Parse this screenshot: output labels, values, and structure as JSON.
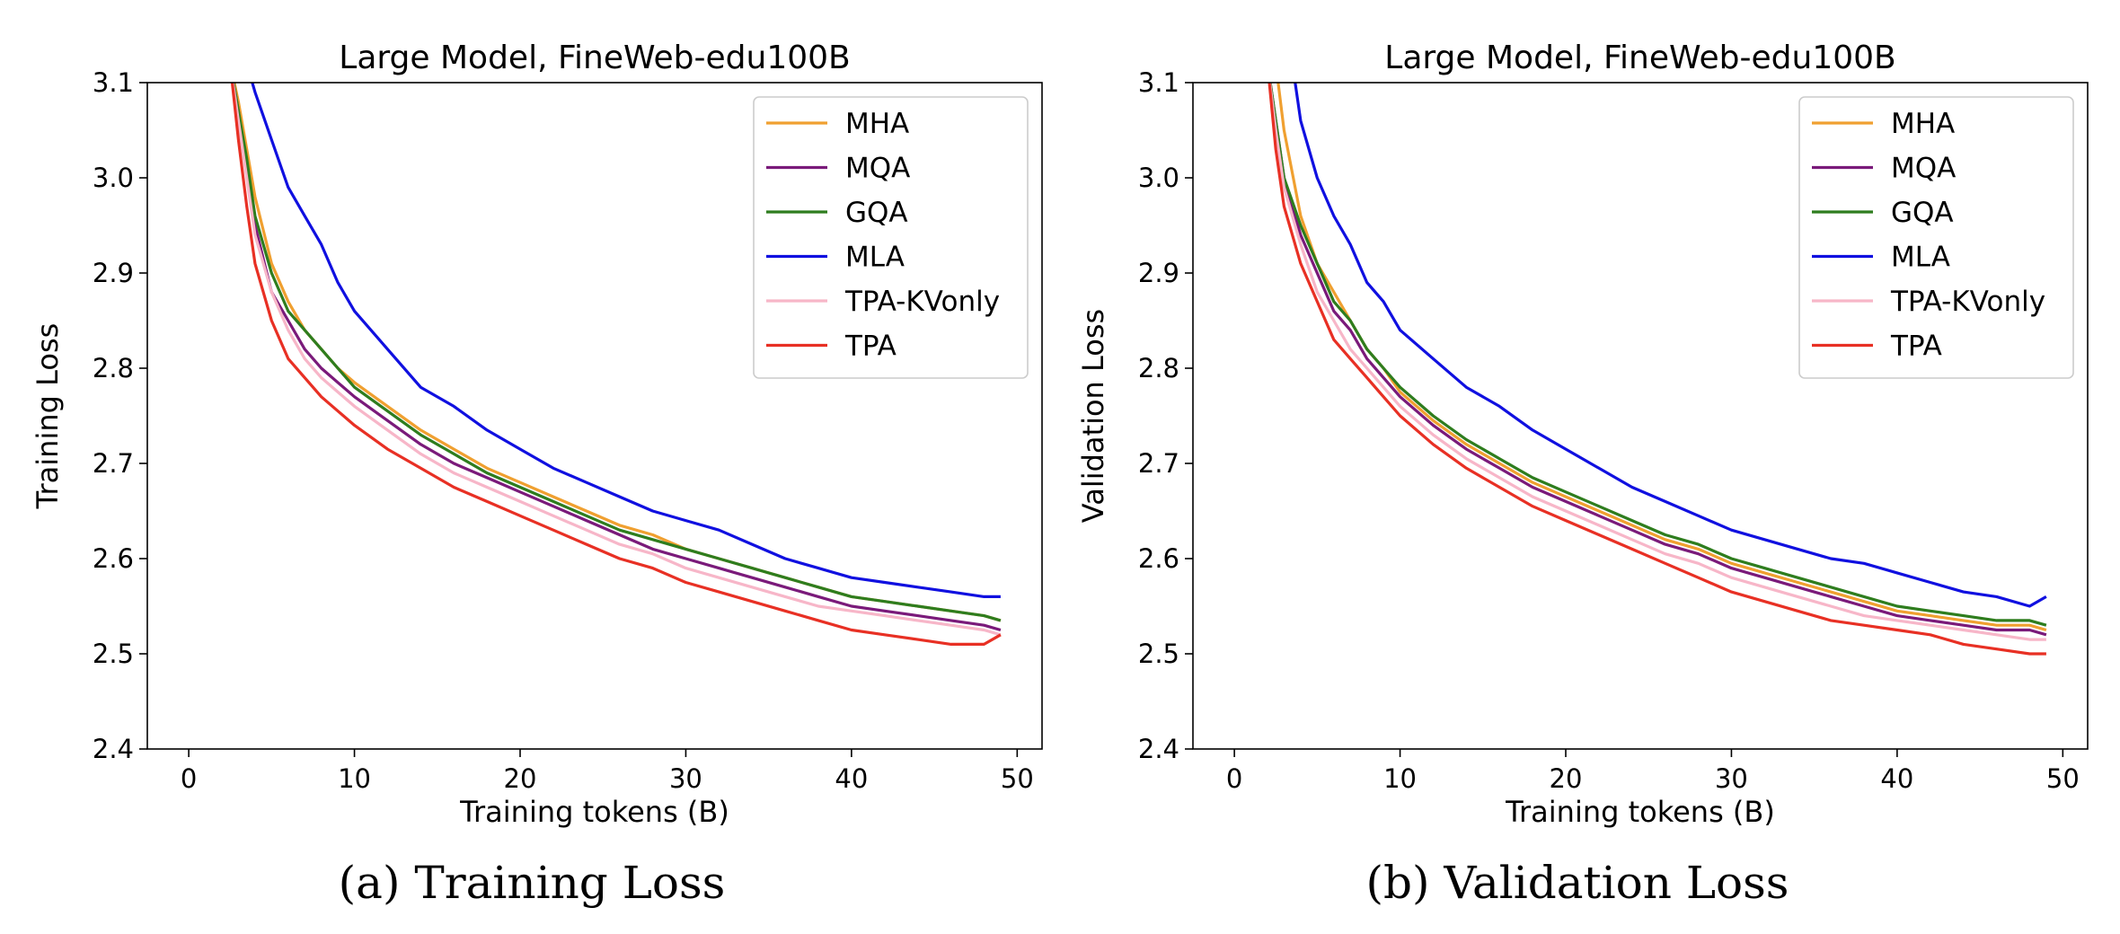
{
  "figure": {
    "captions": [
      "(a) Training Loss",
      "(b) Validation Loss"
    ]
  },
  "chart_data": [
    {
      "type": "line",
      "title": "Large Model, FineWeb-edu100B",
      "xlabel": "Training tokens (B)",
      "ylabel": "Training Loss",
      "xlim": [
        -2.5,
        51.5
      ],
      "ylim": [
        2.4,
        3.1
      ],
      "xticks": [
        0,
        10,
        20,
        30,
        40,
        50
      ],
      "yticks": [
        2.4,
        2.5,
        2.6,
        2.7,
        2.8,
        2.9,
        3.0,
        3.1
      ],
      "xtick_labels": [
        "0",
        "10",
        "20",
        "30",
        "40",
        "50"
      ],
      "ytick_labels": [
        "2.4",
        "2.5",
        "2.6",
        "2.7",
        "2.8",
        "2.9",
        "3.0",
        "3.1"
      ],
      "grid": false,
      "legend_position": "upper-right",
      "series": [
        {
          "name": "MHA",
          "color": "#f0a030",
          "x": [
            2.5,
            3,
            3.5,
            4,
            5,
            6,
            7,
            8,
            9,
            10,
            12,
            14,
            16,
            18,
            20,
            22,
            24,
            26,
            28,
            30,
            32,
            34,
            36,
            38,
            40,
            42,
            44,
            46,
            48,
            49
          ],
          "y": [
            3.12,
            3.08,
            3.03,
            2.98,
            2.91,
            2.87,
            2.84,
            2.82,
            2.8,
            2.785,
            2.76,
            2.735,
            2.715,
            2.695,
            2.68,
            2.665,
            2.65,
            2.635,
            2.625,
            2.61,
            2.6,
            2.59,
            2.58,
            2.57,
            2.56,
            2.555,
            2.55,
            2.545,
            2.54,
            2.535
          ]
        },
        {
          "name": "MQA",
          "color": "#7a1a7a",
          "x": [
            2.5,
            3,
            3.5,
            4,
            5,
            6,
            7,
            8,
            9,
            10,
            12,
            14,
            16,
            18,
            20,
            22,
            24,
            26,
            28,
            30,
            32,
            34,
            36,
            38,
            40,
            42,
            44,
            46,
            48,
            49
          ],
          "y": [
            3.12,
            3.07,
            3.01,
            2.95,
            2.88,
            2.85,
            2.82,
            2.8,
            2.785,
            2.77,
            2.745,
            2.72,
            2.7,
            2.685,
            2.67,
            2.655,
            2.64,
            2.625,
            2.61,
            2.6,
            2.59,
            2.58,
            2.57,
            2.56,
            2.55,
            2.545,
            2.54,
            2.535,
            2.53,
            2.525
          ]
        },
        {
          "name": "GQA",
          "color": "#2e7d1e",
          "x": [
            2.5,
            3,
            3.5,
            4,
            5,
            6,
            7,
            8,
            9,
            10,
            12,
            14,
            16,
            18,
            20,
            22,
            24,
            26,
            28,
            30,
            32,
            34,
            36,
            38,
            40,
            42,
            44,
            46,
            48,
            49
          ],
          "y": [
            3.12,
            3.07,
            3.02,
            2.96,
            2.9,
            2.86,
            2.84,
            2.82,
            2.8,
            2.78,
            2.755,
            2.73,
            2.71,
            2.69,
            2.675,
            2.66,
            2.645,
            2.63,
            2.62,
            2.61,
            2.6,
            2.59,
            2.58,
            2.57,
            2.56,
            2.555,
            2.55,
            2.545,
            2.54,
            2.535
          ]
        },
        {
          "name": "MLA",
          "color": "#1010e0",
          "x": [
            3.5,
            4,
            5,
            6,
            7,
            8,
            9,
            10,
            12,
            14,
            16,
            18,
            20,
            22,
            24,
            26,
            28,
            30,
            32,
            34,
            36,
            38,
            40,
            42,
            44,
            46,
            48,
            49
          ],
          "y": [
            3.12,
            3.09,
            3.04,
            2.99,
            2.96,
            2.93,
            2.89,
            2.86,
            2.82,
            2.78,
            2.76,
            2.735,
            2.715,
            2.695,
            2.68,
            2.665,
            2.65,
            2.64,
            2.63,
            2.615,
            2.6,
            2.59,
            2.58,
            2.575,
            2.57,
            2.565,
            2.56,
            2.56
          ]
        },
        {
          "name": "TPA-KVonly",
          "color": "#f7b6c8",
          "x": [
            2.5,
            3,
            3.5,
            4,
            5,
            6,
            7,
            8,
            9,
            10,
            12,
            14,
            16,
            18,
            20,
            22,
            24,
            26,
            28,
            30,
            32,
            34,
            36,
            38,
            40,
            42,
            44,
            46,
            48,
            49
          ],
          "y": [
            3.12,
            3.06,
            3.0,
            2.94,
            2.88,
            2.84,
            2.81,
            2.79,
            2.775,
            2.76,
            2.735,
            2.71,
            2.69,
            2.675,
            2.66,
            2.645,
            2.63,
            2.615,
            2.605,
            2.59,
            2.58,
            2.57,
            2.56,
            2.55,
            2.545,
            2.54,
            2.535,
            2.53,
            2.525,
            2.52
          ]
        },
        {
          "name": "TPA",
          "color": "#e83024",
          "x": [
            2.5,
            3,
            3.5,
            4,
            5,
            6,
            7,
            8,
            9,
            10,
            12,
            14,
            16,
            18,
            20,
            22,
            24,
            26,
            28,
            30,
            32,
            34,
            36,
            38,
            40,
            42,
            44,
            46,
            48,
            49
          ],
          "y": [
            3.12,
            3.04,
            2.97,
            2.91,
            2.85,
            2.81,
            2.79,
            2.77,
            2.755,
            2.74,
            2.715,
            2.695,
            2.675,
            2.66,
            2.645,
            2.63,
            2.615,
            2.6,
            2.59,
            2.575,
            2.565,
            2.555,
            2.545,
            2.535,
            2.525,
            2.52,
            2.515,
            2.51,
            2.51,
            2.52
          ]
        }
      ]
    },
    {
      "type": "line",
      "title": "Large Model, FineWeb-edu100B",
      "xlabel": "Training tokens (B)",
      "ylabel": "Validation Loss",
      "xlim": [
        -2.5,
        51.5
      ],
      "ylim": [
        2.4,
        3.1
      ],
      "xticks": [
        0,
        10,
        20,
        30,
        40,
        50
      ],
      "yticks": [
        2.4,
        2.5,
        2.6,
        2.7,
        2.8,
        2.9,
        3.0,
        3.1
      ],
      "xtick_labels": [
        "0",
        "10",
        "20",
        "30",
        "40",
        "50"
      ],
      "ytick_labels": [
        "2.4",
        "2.5",
        "2.6",
        "2.7",
        "2.8",
        "2.9",
        "3.0",
        "3.1"
      ],
      "grid": false,
      "legend_position": "upper-right",
      "series": [
        {
          "name": "MHA",
          "color": "#f0a030",
          "x": [
            2.5,
            3,
            4,
            5,
            6,
            7,
            8,
            9,
            10,
            12,
            14,
            16,
            18,
            20,
            22,
            24,
            26,
            28,
            30,
            32,
            34,
            36,
            38,
            40,
            42,
            44,
            46,
            48,
            49
          ],
          "y": [
            3.12,
            3.05,
            2.96,
            2.91,
            2.88,
            2.85,
            2.82,
            2.8,
            2.775,
            2.745,
            2.72,
            2.7,
            2.68,
            2.665,
            2.65,
            2.635,
            2.62,
            2.61,
            2.595,
            2.585,
            2.575,
            2.565,
            2.555,
            2.545,
            2.54,
            2.535,
            2.53,
            2.53,
            2.525
          ]
        },
        {
          "name": "MQA",
          "color": "#7a1a7a",
          "x": [
            2,
            2.5,
            3,
            4,
            5,
            6,
            7,
            8,
            9,
            10,
            12,
            14,
            16,
            18,
            20,
            22,
            24,
            26,
            28,
            30,
            32,
            34,
            36,
            38,
            40,
            42,
            44,
            46,
            48,
            49
          ],
          "y": [
            3.12,
            3.06,
            3.0,
            2.94,
            2.9,
            2.86,
            2.84,
            2.81,
            2.79,
            2.77,
            2.74,
            2.715,
            2.695,
            2.675,
            2.66,
            2.645,
            2.63,
            2.615,
            2.605,
            2.59,
            2.58,
            2.57,
            2.56,
            2.55,
            2.54,
            2.535,
            2.53,
            2.525,
            2.525,
            2.52
          ]
        },
        {
          "name": "GQA",
          "color": "#2e7d1e",
          "x": [
            2,
            2.5,
            3,
            4,
            5,
            6,
            7,
            8,
            9,
            10,
            12,
            14,
            16,
            18,
            20,
            22,
            24,
            26,
            28,
            30,
            32,
            34,
            36,
            38,
            40,
            42,
            44,
            46,
            48,
            49
          ],
          "y": [
            3.12,
            3.06,
            3.0,
            2.95,
            2.91,
            2.87,
            2.85,
            2.82,
            2.8,
            2.78,
            2.75,
            2.725,
            2.705,
            2.685,
            2.67,
            2.655,
            2.64,
            2.625,
            2.615,
            2.6,
            2.59,
            2.58,
            2.57,
            2.56,
            2.55,
            2.545,
            2.54,
            2.535,
            2.535,
            2.53
          ]
        },
        {
          "name": "MLA",
          "color": "#1010e0",
          "x": [
            3.5,
            4,
            5,
            6,
            7,
            8,
            9,
            10,
            12,
            14,
            16,
            18,
            20,
            22,
            24,
            26,
            28,
            30,
            32,
            34,
            36,
            38,
            40,
            42,
            44,
            46,
            48,
            49
          ],
          "y": [
            3.12,
            3.06,
            3.0,
            2.96,
            2.93,
            2.89,
            2.87,
            2.84,
            2.81,
            2.78,
            2.76,
            2.735,
            2.715,
            2.695,
            2.675,
            2.66,
            2.645,
            2.63,
            2.62,
            2.61,
            2.6,
            2.595,
            2.585,
            2.575,
            2.565,
            2.56,
            2.55,
            2.56
          ]
        },
        {
          "name": "TPA-KVonly",
          "color": "#f7b6c8",
          "x": [
            2,
            2.5,
            3,
            4,
            5,
            6,
            7,
            8,
            9,
            10,
            12,
            14,
            16,
            18,
            20,
            22,
            24,
            26,
            28,
            30,
            32,
            34,
            36,
            38,
            40,
            42,
            44,
            46,
            48,
            49
          ],
          "y": [
            3.12,
            3.05,
            2.99,
            2.93,
            2.88,
            2.85,
            2.82,
            2.8,
            2.78,
            2.76,
            2.73,
            2.705,
            2.685,
            2.665,
            2.65,
            2.635,
            2.62,
            2.605,
            2.595,
            2.58,
            2.57,
            2.56,
            2.55,
            2.54,
            2.535,
            2.53,
            2.525,
            2.52,
            2.515,
            2.515
          ]
        },
        {
          "name": "TPA",
          "color": "#e83024",
          "x": [
            2,
            2.5,
            3,
            4,
            5,
            6,
            7,
            8,
            9,
            10,
            12,
            14,
            16,
            18,
            20,
            22,
            24,
            26,
            28,
            30,
            32,
            34,
            36,
            38,
            40,
            42,
            44,
            46,
            48,
            49
          ],
          "y": [
            3.12,
            3.03,
            2.97,
            2.91,
            2.87,
            2.83,
            2.81,
            2.79,
            2.77,
            2.75,
            2.72,
            2.695,
            2.675,
            2.655,
            2.64,
            2.625,
            2.61,
            2.595,
            2.58,
            2.565,
            2.555,
            2.545,
            2.535,
            2.53,
            2.525,
            2.52,
            2.51,
            2.505,
            2.5,
            2.5
          ]
        }
      ]
    }
  ]
}
